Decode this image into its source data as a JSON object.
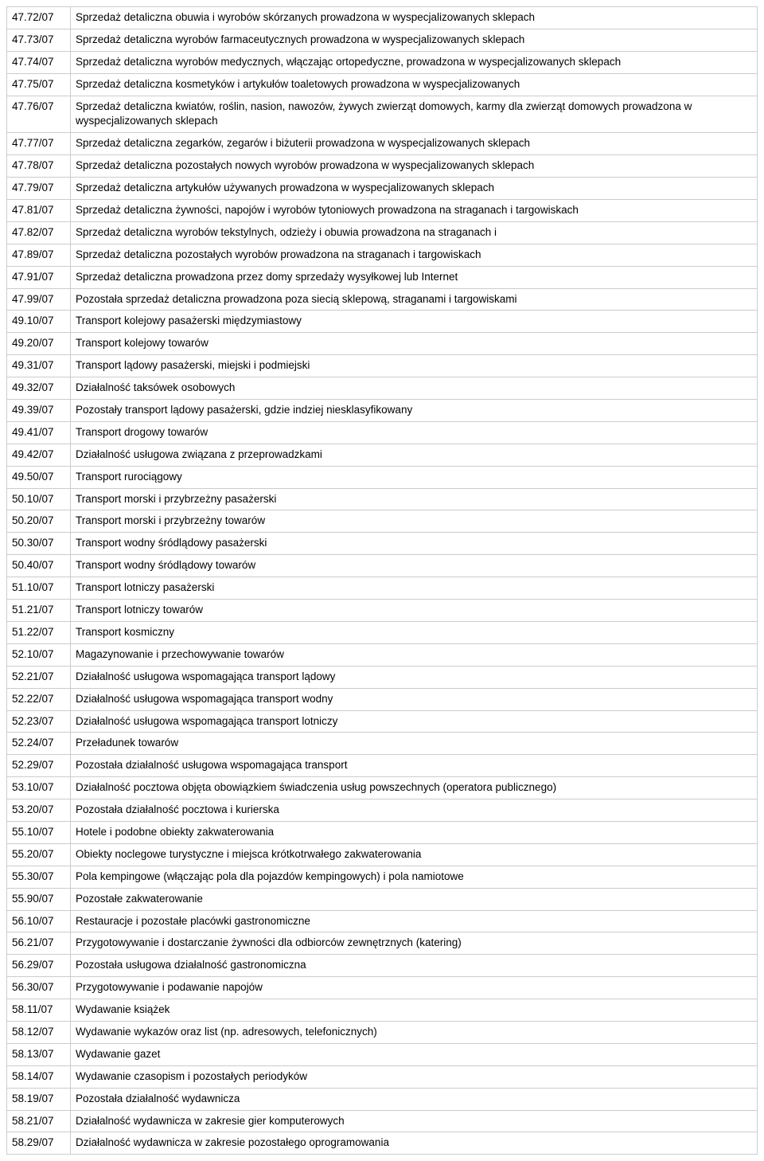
{
  "table": {
    "border_color": "#cccccc",
    "background_color": "#ffffff",
    "font_size": 13.5,
    "text_color": "#000000",
    "rows": [
      {
        "code": "47.72/07",
        "desc": "Sprzedaż detaliczna obuwia i wyrobów skórzanych prowadzona w wyspecjalizowanych sklepach"
      },
      {
        "code": "47.73/07",
        "desc": "Sprzedaż detaliczna wyrobów farmaceutycznych prowadzona w wyspecjalizowanych sklepach"
      },
      {
        "code": "47.74/07",
        "desc": "Sprzedaż detaliczna wyrobów medycznych, włączając ortopedyczne, prowadzona w wyspecjalizowanych sklepach"
      },
      {
        "code": "47.75/07",
        "desc": "Sprzedaż detaliczna kosmetyków i artykułów toaletowych prowadzona w wyspecjalizowanych"
      },
      {
        "code": "47.76/07",
        "desc": "Sprzedaż detaliczna kwiatów, roślin, nasion, nawozów, żywych zwierząt domowych, karmy dla zwierząt domowych prowadzona w wyspecjalizowanych sklepach"
      },
      {
        "code": "47.77/07",
        "desc": "Sprzedaż detaliczna zegarków, zegarów i biżuterii prowadzona w wyspecjalizowanych sklepach"
      },
      {
        "code": "47.78/07",
        "desc": "Sprzedaż detaliczna pozostałych nowych wyrobów prowadzona w wyspecjalizowanych sklepach"
      },
      {
        "code": "47.79/07",
        "desc": "Sprzedaż detaliczna artykułów używanych prowadzona w wyspecjalizowanych sklepach"
      },
      {
        "code": "47.81/07",
        "desc": "Sprzedaż detaliczna żywności, napojów i wyrobów tytoniowych prowadzona na straganach i targowiskach"
      },
      {
        "code": "47.82/07",
        "desc": "Sprzedaż detaliczna wyrobów tekstylnych, odzieży i obuwia prowadzona na straganach i"
      },
      {
        "code": "47.89/07",
        "desc": "Sprzedaż detaliczna pozostałych wyrobów prowadzona na straganach i targowiskach"
      },
      {
        "code": "47.91/07",
        "desc": "Sprzedaż detaliczna prowadzona przez domy sprzedaży wysyłkowej lub Internet"
      },
      {
        "code": "47.99/07",
        "desc": "Pozostała sprzedaż detaliczna prowadzona poza siecią sklepową, straganami i targowiskami"
      },
      {
        "code": "49.10/07",
        "desc": "Transport kolejowy pasażerski międzymiastowy"
      },
      {
        "code": "49.20/07",
        "desc": "Transport kolejowy towarów"
      },
      {
        "code": "49.31/07",
        "desc": "Transport lądowy pasażerski, miejski i podmiejski"
      },
      {
        "code": "49.32/07",
        "desc": "Działalność taksówek osobowych"
      },
      {
        "code": "49.39/07",
        "desc": "Pozostały transport lądowy pasażerski, gdzie indziej niesklasyfikowany"
      },
      {
        "code": "49.41/07",
        "desc": "Transport drogowy towarów"
      },
      {
        "code": "49.42/07",
        "desc": "Działalność usługowa związana z przeprowadzkami"
      },
      {
        "code": "49.50/07",
        "desc": "Transport rurociągowy"
      },
      {
        "code": "50.10/07",
        "desc": "Transport morski i przybrzeżny pasażerski"
      },
      {
        "code": "50.20/07",
        "desc": "Transport morski i  przybrzeżny towarów"
      },
      {
        "code": "50.30/07",
        "desc": "Transport wodny śródlądowy pasażerski"
      },
      {
        "code": "50.40/07",
        "desc": "Transport wodny śródlądowy towarów"
      },
      {
        "code": "51.10/07",
        "desc": "Transport lotniczy pasażerski"
      },
      {
        "code": "51.21/07",
        "desc": "Transport lotniczy towarów"
      },
      {
        "code": "51.22/07",
        "desc": "Transport kosmiczny"
      },
      {
        "code": "52.10/07",
        "desc": "Magazynowanie i przechowywanie towarów"
      },
      {
        "code": "52.21/07",
        "desc": "Działalność usługowa wspomagająca transport lądowy"
      },
      {
        "code": "52.22/07",
        "desc": "Działalność usługowa wspomagająca transport wodny"
      },
      {
        "code": "52.23/07",
        "desc": "Działalność usługowa wspomagająca transport lotniczy"
      },
      {
        "code": "52.24/07",
        "desc": "Przeładunek towarów"
      },
      {
        "code": "52.29/07",
        "desc": "Pozostała działalność usługowa wspomagająca transport"
      },
      {
        "code": "53.10/07",
        "desc": "Działalność pocztowa objęta obowiązkiem świadczenia usług powszechnych (operatora publicznego)"
      },
      {
        "code": "53.20/07",
        "desc": "Pozostała działalność pocztowa  i kurierska"
      },
      {
        "code": "55.10/07",
        "desc": "Hotele i podobne obiekty zakwaterowania"
      },
      {
        "code": "55.20/07",
        "desc": "Obiekty noclegowe turystyczne i miejsca krótkotrwałego zakwaterowania"
      },
      {
        "code": "55.30/07",
        "desc": "Pola kempingowe (włączając pola dla pojazdów kempingowych) i pola namiotowe"
      },
      {
        "code": "55.90/07",
        "desc": "Pozostałe zakwaterowanie"
      },
      {
        "code": "56.10/07",
        "desc": "Restauracje i pozostałe placówki gastronomiczne"
      },
      {
        "code": "56.21/07",
        "desc": "Przygotowywanie i dostarczanie żywności dla odbiorców zewnętrznych (katering)"
      },
      {
        "code": "56.29/07",
        "desc": "Pozostała usługowa działalność gastronomiczna"
      },
      {
        "code": "56.30/07",
        "desc": "Przygotowywanie i podawanie napojów"
      },
      {
        "code": "58.11/07",
        "desc": "Wydawanie książek"
      },
      {
        "code": "58.12/07",
        "desc": "Wydawanie wykazów oraz list (np. adresowych, telefonicznych)"
      },
      {
        "code": "58.13/07",
        "desc": "Wydawanie gazet"
      },
      {
        "code": "58.14/07",
        "desc": "Wydawanie czasopism i pozostałych periodyków"
      },
      {
        "code": "58.19/07",
        "desc": "Pozostała działalność wydawnicza"
      },
      {
        "code": "58.21/07",
        "desc": "Działalność wydawnicza w zakresie gier komputerowych"
      },
      {
        "code": "58.29/07",
        "desc": "Działalność wydawnicza w zakresie pozostałego oprogramowania"
      }
    ]
  }
}
